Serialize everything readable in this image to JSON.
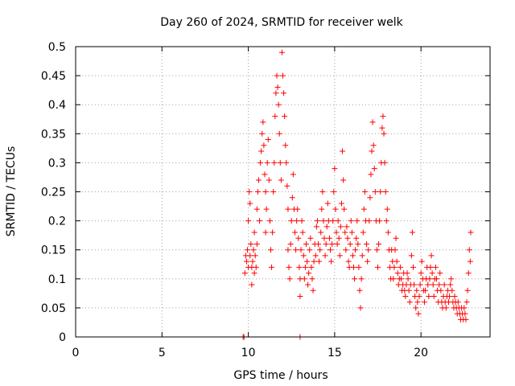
{
  "chart_data": {
    "type": "scatter",
    "title": "Day 260 of 2024, SRMTID for receiver welk",
    "xlabel": "GPS time / hours",
    "ylabel": "SRMTID / TECUs",
    "xlim": [
      0,
      24
    ],
    "ylim": [
      0,
      0.5
    ],
    "xticks": [
      0,
      5,
      10,
      15,
      20
    ],
    "xtick_labels": [
      "0",
      "5",
      "10",
      "15",
      "20"
    ],
    "yticks": [
      0,
      0.05,
      0.1,
      0.15,
      0.2,
      0.25,
      0.3,
      0.35,
      0.4,
      0.45,
      0.5
    ],
    "ytick_labels": [
      "0",
      "0.05",
      "0.1",
      "0.15",
      "0.2",
      "0.25",
      "0.3",
      "0.35",
      "0.4",
      "0.45",
      "0.5"
    ],
    "grid": true,
    "marker": "plus",
    "color": "#ff0000",
    "series": [
      {
        "name": "SRMTID",
        "points": [
          [
            9.7,
            0.0
          ],
          [
            9.75,
            0.0
          ],
          [
            13.0,
            0.0
          ],
          [
            9.8,
            0.11
          ],
          [
            9.85,
            0.14
          ],
          [
            9.9,
            0.13
          ],
          [
            9.95,
            0.15
          ],
          [
            10.0,
            0.12
          ],
          [
            10.0,
            0.2
          ],
          [
            10.05,
            0.25
          ],
          [
            10.1,
            0.23
          ],
          [
            10.1,
            0.14
          ],
          [
            10.15,
            0.16
          ],
          [
            10.2,
            0.12
          ],
          [
            10.2,
            0.09
          ],
          [
            10.25,
            0.13
          ],
          [
            10.3,
            0.15
          ],
          [
            10.35,
            0.18
          ],
          [
            10.35,
            0.11
          ],
          [
            10.4,
            0.14
          ],
          [
            10.45,
            0.12
          ],
          [
            10.5,
            0.16
          ],
          [
            10.5,
            0.22
          ],
          [
            10.55,
            0.25
          ],
          [
            10.6,
            0.27
          ],
          [
            10.65,
            0.2
          ],
          [
            10.7,
            0.3
          ],
          [
            10.75,
            0.32
          ],
          [
            10.8,
            0.35
          ],
          [
            10.85,
            0.37
          ],
          [
            10.9,
            0.33
          ],
          [
            10.95,
            0.28
          ],
          [
            11.0,
            0.25
          ],
          [
            11.0,
            0.18
          ],
          [
            11.05,
            0.22
          ],
          [
            11.1,
            0.3
          ],
          [
            11.15,
            0.34
          ],
          [
            11.2,
            0.27
          ],
          [
            11.25,
            0.2
          ],
          [
            11.3,
            0.15
          ],
          [
            11.35,
            0.12
          ],
          [
            11.4,
            0.18
          ],
          [
            11.45,
            0.25
          ],
          [
            11.5,
            0.3
          ],
          [
            11.55,
            0.38
          ],
          [
            11.6,
            0.42
          ],
          [
            11.65,
            0.45
          ],
          [
            11.7,
            0.43
          ],
          [
            11.75,
            0.4
          ],
          [
            11.8,
            0.35
          ],
          [
            11.85,
            0.3
          ],
          [
            11.9,
            0.27
          ],
          [
            11.95,
            0.49
          ],
          [
            12.0,
            0.45
          ],
          [
            12.05,
            0.42
          ],
          [
            12.1,
            0.38
          ],
          [
            12.15,
            0.33
          ],
          [
            12.2,
            0.3
          ],
          [
            12.25,
            0.26
          ],
          [
            12.3,
            0.22
          ],
          [
            12.3,
            0.15
          ],
          [
            12.35,
            0.12
          ],
          [
            12.4,
            0.1
          ],
          [
            12.45,
            0.16
          ],
          [
            12.5,
            0.2
          ],
          [
            12.55,
            0.24
          ],
          [
            12.6,
            0.28
          ],
          [
            12.65,
            0.22
          ],
          [
            12.7,
            0.18
          ],
          [
            12.75,
            0.15
          ],
          [
            12.8,
            0.2
          ],
          [
            12.85,
            0.22
          ],
          [
            12.9,
            0.17
          ],
          [
            12.95,
            0.12
          ],
          [
            13.0,
            0.07
          ],
          [
            13.0,
            0.1
          ],
          [
            13.05,
            0.15
          ],
          [
            13.1,
            0.2
          ],
          [
            13.15,
            0.18
          ],
          [
            13.2,
            0.14
          ],
          [
            13.25,
            0.1
          ],
          [
            13.3,
            0.12
          ],
          [
            13.35,
            0.16
          ],
          [
            13.4,
            0.13
          ],
          [
            13.45,
            0.09
          ],
          [
            13.5,
            0.11
          ],
          [
            13.55,
            0.15
          ],
          [
            13.6,
            0.17
          ],
          [
            13.65,
            0.12
          ],
          [
            13.7,
            0.1
          ],
          [
            13.75,
            0.08
          ],
          [
            13.8,
            0.13
          ],
          [
            13.85,
            0.16
          ],
          [
            13.9,
            0.14
          ],
          [
            13.95,
            0.19
          ],
          [
            14.0,
            0.2
          ],
          [
            14.05,
            0.16
          ],
          [
            14.1,
            0.13
          ],
          [
            14.15,
            0.15
          ],
          [
            14.2,
            0.18
          ],
          [
            14.25,
            0.22
          ],
          [
            14.3,
            0.25
          ],
          [
            14.35,
            0.2
          ],
          [
            14.4,
            0.17
          ],
          [
            14.45,
            0.14
          ],
          [
            14.5,
            0.16
          ],
          [
            14.55,
            0.19
          ],
          [
            14.6,
            0.23
          ],
          [
            14.65,
            0.2
          ],
          [
            14.7,
            0.17
          ],
          [
            14.75,
            0.15
          ],
          [
            14.8,
            0.13
          ],
          [
            14.85,
            0.16
          ],
          [
            14.9,
            0.2
          ],
          [
            14.95,
            0.25
          ],
          [
            15.0,
            0.29
          ],
          [
            15.05,
            0.22
          ],
          [
            15.1,
            0.18
          ],
          [
            15.15,
            0.16
          ],
          [
            15.2,
            0.2
          ],
          [
            15.25,
            0.17
          ],
          [
            15.3,
            0.14
          ],
          [
            15.35,
            0.19
          ],
          [
            15.4,
            0.23
          ],
          [
            15.45,
            0.32
          ],
          [
            15.5,
            0.27
          ],
          [
            15.55,
            0.22
          ],
          [
            15.6,
            0.18
          ],
          [
            15.65,
            0.15
          ],
          [
            15.7,
            0.19
          ],
          [
            15.75,
            0.17
          ],
          [
            15.8,
            0.13
          ],
          [
            15.85,
            0.12
          ],
          [
            15.9,
            0.16
          ],
          [
            15.95,
            0.2
          ],
          [
            16.0,
            0.18
          ],
          [
            16.05,
            0.14
          ],
          [
            16.1,
            0.12
          ],
          [
            16.15,
            0.1
          ],
          [
            16.2,
            0.15
          ],
          [
            16.25,
            0.17
          ],
          [
            16.3,
            0.2
          ],
          [
            16.35,
            0.16
          ],
          [
            16.4,
            0.12
          ],
          [
            16.45,
            0.08
          ],
          [
            16.5,
            0.05
          ],
          [
            16.55,
            0.1
          ],
          [
            16.6,
            0.14
          ],
          [
            16.65,
            0.18
          ],
          [
            16.7,
            0.22
          ],
          [
            16.75,
            0.25
          ],
          [
            16.8,
            0.2
          ],
          [
            16.85,
            0.16
          ],
          [
            16.9,
            0.13
          ],
          [
            16.95,
            0.15
          ],
          [
            17.0,
            0.2
          ],
          [
            17.05,
            0.24
          ],
          [
            17.1,
            0.28
          ],
          [
            17.15,
            0.32
          ],
          [
            17.2,
            0.37
          ],
          [
            17.25,
            0.33
          ],
          [
            17.3,
            0.29
          ],
          [
            17.35,
            0.25
          ],
          [
            17.4,
            0.2
          ],
          [
            17.45,
            0.15
          ],
          [
            17.5,
            0.12
          ],
          [
            17.55,
            0.16
          ],
          [
            17.6,
            0.2
          ],
          [
            17.65,
            0.25
          ],
          [
            17.7,
            0.3
          ],
          [
            17.75,
            0.36
          ],
          [
            17.8,
            0.38
          ],
          [
            17.85,
            0.35
          ],
          [
            17.9,
            0.3
          ],
          [
            17.95,
            0.25
          ],
          [
            18.0,
            0.2
          ],
          [
            18.05,
            0.22
          ],
          [
            18.1,
            0.18
          ],
          [
            18.15,
            0.15
          ],
          [
            18.2,
            0.12
          ],
          [
            18.25,
            0.1
          ],
          [
            18.3,
            0.15
          ],
          [
            18.35,
            0.13
          ],
          [
            18.4,
            0.1
          ],
          [
            18.45,
            0.12
          ],
          [
            18.5,
            0.15
          ],
          [
            18.55,
            0.17
          ],
          [
            18.6,
            0.13
          ],
          [
            18.65,
            0.11
          ],
          [
            18.7,
            0.09
          ],
          [
            18.75,
            0.1
          ],
          [
            18.8,
            0.12
          ],
          [
            18.85,
            0.1
          ],
          [
            18.9,
            0.08
          ],
          [
            18.95,
            0.09
          ],
          [
            19.0,
            0.11
          ],
          [
            19.05,
            0.08
          ],
          [
            19.1,
            0.07
          ],
          [
            19.15,
            0.09
          ],
          [
            19.2,
            0.11
          ],
          [
            19.25,
            0.1
          ],
          [
            19.3,
            0.08
          ],
          [
            19.35,
            0.06
          ],
          [
            19.4,
            0.09
          ],
          [
            19.45,
            0.14
          ],
          [
            19.5,
            0.18
          ],
          [
            19.55,
            0.12
          ],
          [
            19.6,
            0.09
          ],
          [
            19.65,
            0.07
          ],
          [
            19.7,
            0.05
          ],
          [
            19.75,
            0.08
          ],
          [
            19.8,
            0.06
          ],
          [
            19.85,
            0.04
          ],
          [
            19.9,
            0.07
          ],
          [
            19.95,
            0.09
          ],
          [
            20.0,
            0.11
          ],
          [
            20.05,
            0.13
          ],
          [
            20.1,
            0.1
          ],
          [
            20.15,
            0.08
          ],
          [
            20.2,
            0.06
          ],
          [
            20.25,
            0.08
          ],
          [
            20.3,
            0.1
          ],
          [
            20.35,
            0.12
          ],
          [
            20.4,
            0.09
          ],
          [
            20.45,
            0.07
          ],
          [
            20.5,
            0.1
          ],
          [
            20.55,
            0.12
          ],
          [
            20.6,
            0.14
          ],
          [
            20.65,
            0.11
          ],
          [
            20.7,
            0.09
          ],
          [
            20.75,
            0.07
          ],
          [
            20.8,
            0.1
          ],
          [
            20.85,
            0.12
          ],
          [
            20.9,
            0.1
          ],
          [
            20.95,
            0.08
          ],
          [
            21.0,
            0.06
          ],
          [
            21.05,
            0.09
          ],
          [
            21.1,
            0.11
          ],
          [
            21.15,
            0.08
          ],
          [
            21.2,
            0.06
          ],
          [
            21.25,
            0.05
          ],
          [
            21.3,
            0.07
          ],
          [
            21.35,
            0.09
          ],
          [
            21.4,
            0.06
          ],
          [
            21.45,
            0.05
          ],
          [
            21.5,
            0.07
          ],
          [
            21.55,
            0.08
          ],
          [
            21.6,
            0.06
          ],
          [
            21.65,
            0.07
          ],
          [
            21.7,
            0.09
          ],
          [
            21.75,
            0.1
          ],
          [
            21.8,
            0.08
          ],
          [
            21.85,
            0.06
          ],
          [
            21.9,
            0.05
          ],
          [
            21.95,
            0.07
          ],
          [
            22.0,
            0.06
          ],
          [
            22.05,
            0.05
          ],
          [
            22.1,
            0.04
          ],
          [
            22.15,
            0.06
          ],
          [
            22.2,
            0.05
          ],
          [
            22.25,
            0.04
          ],
          [
            22.3,
            0.03
          ],
          [
            22.35,
            0.05
          ],
          [
            22.4,
            0.04
          ],
          [
            22.45,
            0.03
          ],
          [
            22.5,
            0.05
          ],
          [
            22.55,
            0.04
          ],
          [
            22.6,
            0.03
          ],
          [
            22.65,
            0.06
          ],
          [
            22.7,
            0.08
          ],
          [
            22.75,
            0.11
          ],
          [
            22.8,
            0.15
          ],
          [
            22.85,
            0.13
          ],
          [
            22.88,
            0.18
          ]
        ]
      }
    ]
  }
}
